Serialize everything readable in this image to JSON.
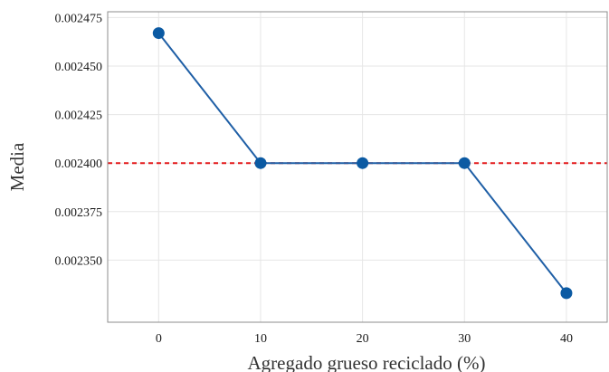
{
  "chart_data": {
    "type": "line",
    "title": "",
    "xlabel": "Agregado grueso reciclado (%)",
    "ylabel": "Media",
    "x": [
      0,
      10,
      20,
      30,
      40
    ],
    "series": [
      {
        "values": [
          0.002467,
          0.0024,
          0.0024,
          0.0024,
          0.002333
        ],
        "color": "#1f5fa6"
      }
    ],
    "reference_line": {
      "y": 0.0024,
      "style": "dashed",
      "color": "#e31a1c"
    },
    "x_ticks": [
      "0",
      "10",
      "20",
      "30",
      "40"
    ],
    "y_ticks": [
      "0.002350",
      "0.002375",
      "0.002400",
      "0.002425",
      "0.002450",
      "0.002475"
    ],
    "xlim": [
      -5,
      44
    ],
    "ylim": [
      0.002318,
      0.002478
    ],
    "grid": true,
    "legend": "none",
    "point_color": "#0b5aa3",
    "grid_color": "#e6e6e6",
    "panel_border_color": "#8c8c8c"
  }
}
